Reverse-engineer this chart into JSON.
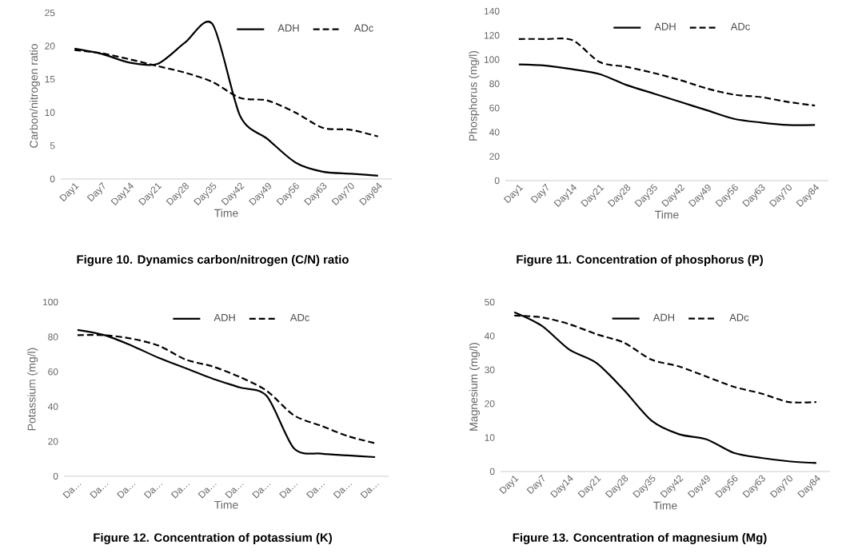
{
  "chart_data": [
    {
      "type": "line",
      "title": "Figure 10. Dynamics carbon/nitrogen (C/N) ratio",
      "xlabel": "Time",
      "ylabel": "Carbon/nitrogen ratio",
      "categories": [
        "Day1",
        "Day7",
        "Day14",
        "Day21",
        "Day28",
        "Day35",
        "Day42",
        "Day49",
        "Day56",
        "Day63",
        "Day70",
        "Day84"
      ],
      "ylim": [
        0,
        25
      ],
      "yticks": [
        0,
        5,
        10,
        15,
        20,
        25
      ],
      "legend": "top right",
      "series": [
        {
          "name": "ADH",
          "color": "#000000",
          "line_style": "solid",
          "values": [
            19.6,
            18.8,
            17.5,
            17.3,
            20.5,
            23.3,
            9.5,
            6,
            2.5,
            1.1,
            0.8,
            0.5
          ]
        },
        {
          "name": "ADc",
          "color": "#000000",
          "line_style": "dashed",
          "values": [
            19.4,
            18.9,
            18,
            17,
            16,
            14.6,
            12.2,
            11.8,
            10,
            7.7,
            7.4,
            6.4
          ]
        }
      ]
    },
    {
      "type": "line",
      "title": "Figure 11. Concentration of phosphorus (P)",
      "xlabel": "Time",
      "ylabel": "Phosphorus (mg/l)",
      "categories": [
        "Day1",
        "Day7",
        "Day14",
        "Day21",
        "Day28",
        "Day35",
        "Day42",
        "Day49",
        "Day56",
        "Day63",
        "Day70",
        "Day84"
      ],
      "ylim": [
        0,
        140
      ],
      "yticks": [
        0,
        20,
        40,
        60,
        80,
        100,
        120,
        140
      ],
      "legend": "top",
      "series": [
        {
          "name": "ADH",
          "color": "#000000",
          "line_style": "solid",
          "values": [
            96,
            95,
            92,
            88,
            79,
            72,
            65,
            58,
            51,
            48,
            46,
            46
          ]
        },
        {
          "name": "ADc",
          "color": "#000000",
          "line_style": "dashed",
          "values": [
            117,
            117,
            116,
            98,
            94,
            89,
            83,
            76,
            71,
            69,
            65,
            62
          ]
        }
      ]
    },
    {
      "type": "line",
      "title": "Figure 12. Concentration of potassium (K)",
      "xlabel": "Time",
      "ylabel": "Potassium (mg/l)",
      "categories": [
        "Da…",
        "Da…",
        "Da…",
        "Da…",
        "Da…",
        "Da…",
        "Da…",
        "Da…",
        "Da…",
        "Da…",
        "Da…",
        "Da…"
      ],
      "ylim": [
        0,
        100
      ],
      "yticks": [
        0,
        20,
        40,
        60,
        80,
        100
      ],
      "legend": "top",
      "series": [
        {
          "name": "ADH",
          "color": "#000000",
          "line_style": "solid",
          "values": [
            84,
            81,
            75,
            68,
            62,
            56,
            51,
            46,
            16,
            13,
            12,
            11
          ]
        },
        {
          "name": "ADc",
          "color": "#000000",
          "line_style": "dashed",
          "values": [
            81,
            81,
            79,
            75,
            67,
            63,
            57,
            49,
            35,
            29,
            23,
            19
          ]
        }
      ]
    },
    {
      "type": "line",
      "title": "Figure 13. Concentration of magnesium (Mg)",
      "xlabel": "Time",
      "ylabel": "Magnesium (mg/l)",
      "categories": [
        "Day1",
        "Day7",
        "Day14",
        "Day21",
        "Day28",
        "Day35",
        "Day42",
        "Day49",
        "Day56",
        "Day63",
        "Day70",
        "Day84"
      ],
      "ylim": [
        0,
        50
      ],
      "yticks": [
        0,
        10,
        20,
        30,
        40,
        50
      ],
      "legend": "top",
      "series": [
        {
          "name": "ADH",
          "color": "#000000",
          "line_style": "solid",
          "values": [
            47,
            43,
            36,
            32,
            24,
            15,
            11,
            9.5,
            5.5,
            4,
            3,
            2.5
          ]
        },
        {
          "name": "ADc",
          "color": "#000000",
          "line_style": "dashed",
          "values": [
            46,
            45.5,
            43.5,
            40.5,
            38,
            33,
            31,
            28,
            25,
            23,
            20.5,
            20.5
          ]
        }
      ]
    }
  ]
}
